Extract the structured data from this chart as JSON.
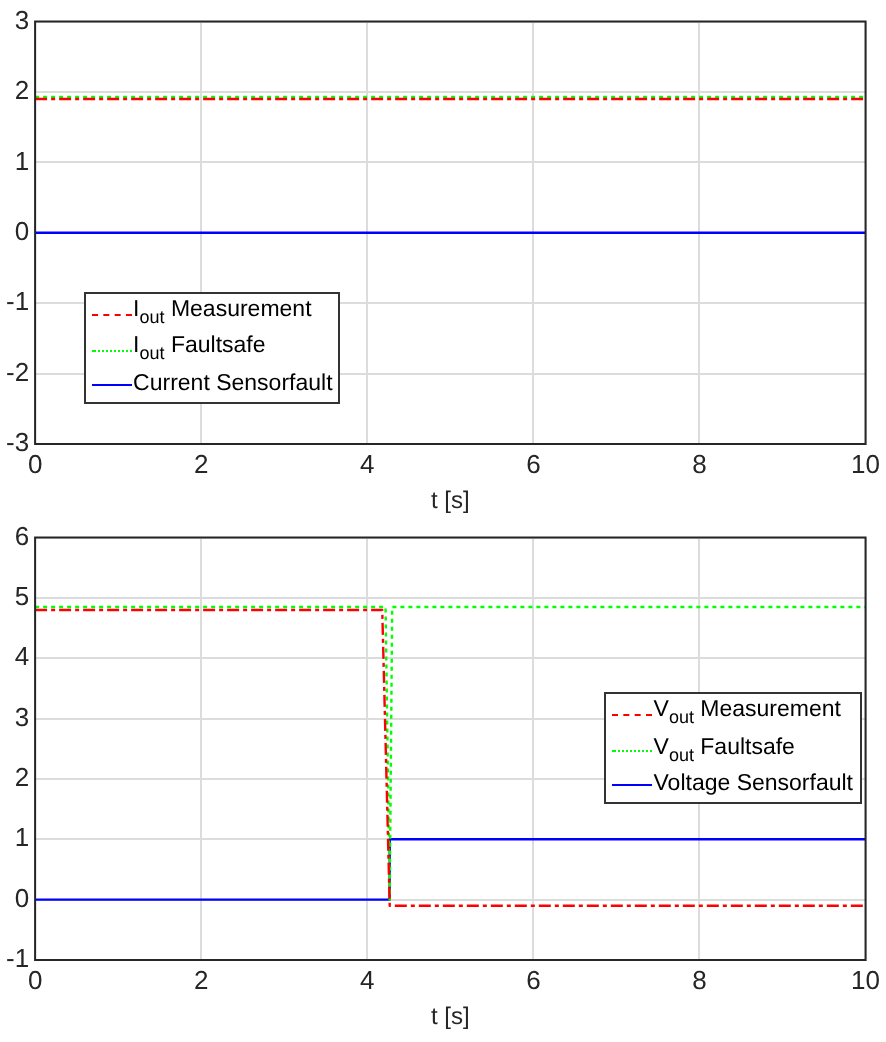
{
  "chart_data": [
    {
      "type": "line",
      "xlabel": "t [s]",
      "xlim": [
        0,
        10
      ],
      "xticks": [
        0,
        2,
        4,
        6,
        8,
        10
      ],
      "ylim": [
        -3,
        3
      ],
      "yticks": [
        -3,
        -2,
        -1,
        0,
        1,
        2,
        3
      ],
      "grid": true,
      "legend": "bottom left",
      "series": [
        {
          "name": "I$_{out}$ Measurement",
          "color": "#ff0000",
          "line_style": "dashdot",
          "x": [
            0,
            10
          ],
          "values": [
            1.9,
            1.9
          ]
        },
        {
          "name": "I$_{out}$ Faultsafe",
          "color": "#00ff00",
          "line_style": "dotted",
          "x": [
            0,
            10
          ],
          "values": [
            1.93,
            1.93
          ]
        },
        {
          "name": "Current Sensorfault",
          "color": "#0000ff",
          "line_style": "solid",
          "x": [
            0,
            10
          ],
          "values": [
            0,
            0
          ]
        }
      ]
    },
    {
      "type": "line",
      "xlabel": "t [s]",
      "xlim": [
        0,
        10
      ],
      "xticks": [
        0,
        2,
        4,
        6,
        8,
        10
      ],
      "ylim": [
        -1,
        6
      ],
      "yticks": [
        -1,
        0,
        1,
        2,
        3,
        4,
        5,
        6
      ],
      "grid": true,
      "legend": "right",
      "series": [
        {
          "name": "V$_{out}$ Measurement",
          "color": "#ff0000",
          "line_style": "dashdot",
          "x": [
            0,
            4.18,
            4.27,
            10
          ],
          "values": [
            4.8,
            4.8,
            -0.1,
            -0.1
          ]
        },
        {
          "name": "V$_{out}$ Faultsafe",
          "color": "#00ff00",
          "line_style": "dotted",
          "x": [
            0,
            4.22,
            4.27,
            4.3,
            10
          ],
          "values": [
            4.85,
            4.85,
            0,
            4.85,
            4.85
          ]
        },
        {
          "name": "Voltage Sensorfault",
          "color": "#0000ff",
          "line_style": "solid",
          "x": [
            0,
            4.27,
            4.27,
            10
          ],
          "values": [
            0,
            0,
            1,
            1
          ]
        }
      ]
    }
  ]
}
